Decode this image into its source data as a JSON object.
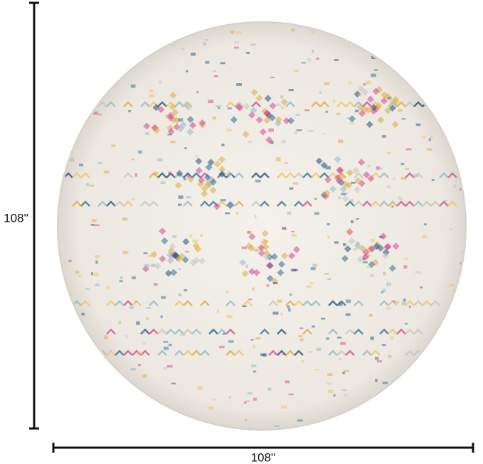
{
  "dimensions": {
    "height": "108''",
    "width": "108''"
  }
}
